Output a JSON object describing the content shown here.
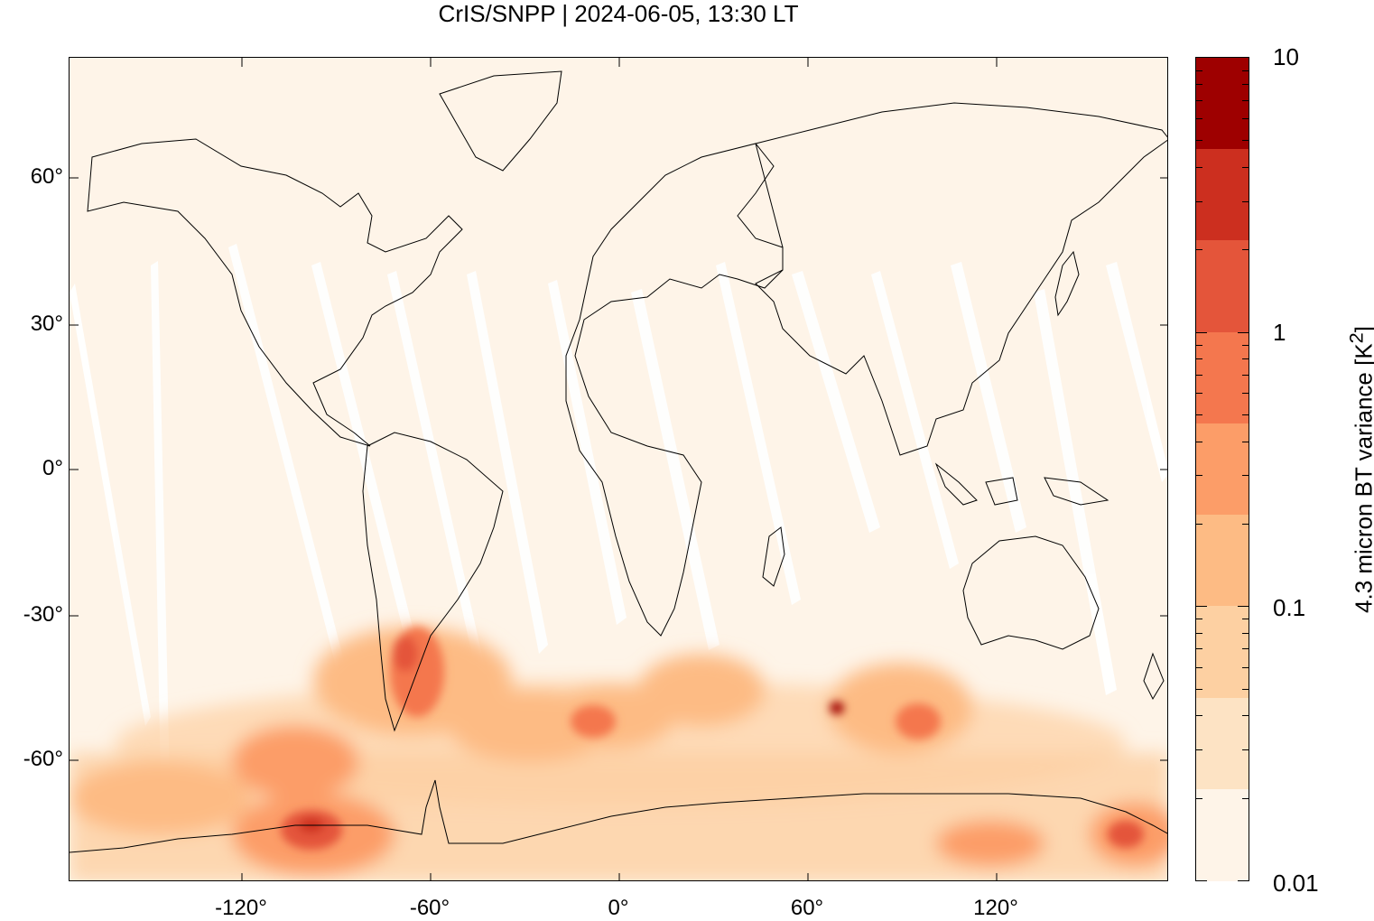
{
  "title": "CrIS/SNPP | 2024-06-05, 13:30 LT",
  "y_ticks": [
    "60°",
    "30°",
    "0°",
    "-30°",
    "-60°"
  ],
  "x_ticks": [
    "-120°",
    "-60°",
    "0°",
    "60°",
    "120°"
  ],
  "colorbar": {
    "label_prefix": "4.3 micron BT variance [K",
    "label_sup": "2",
    "label_suffix": "]",
    "tick_labels": [
      "10",
      "1",
      "0.1",
      "0.01"
    ],
    "scale": "log",
    "range": [
      0.01,
      10
    ],
    "colors": [
      "#fef4e8",
      "#fde3c4",
      "#fdd0a2",
      "#fdbb84",
      "#fc9d68",
      "#f4774e",
      "#e4553a",
      "#cc2f1f",
      "#9e0000"
    ]
  },
  "map": {
    "projection": "equirectangular",
    "lon_range": [
      -175,
      175
    ],
    "lat_range": [
      -84,
      84
    ],
    "background_color": "#fef4e8",
    "coastlines": "on",
    "description_colormap": "low values pale cream, high values dark red"
  }
}
